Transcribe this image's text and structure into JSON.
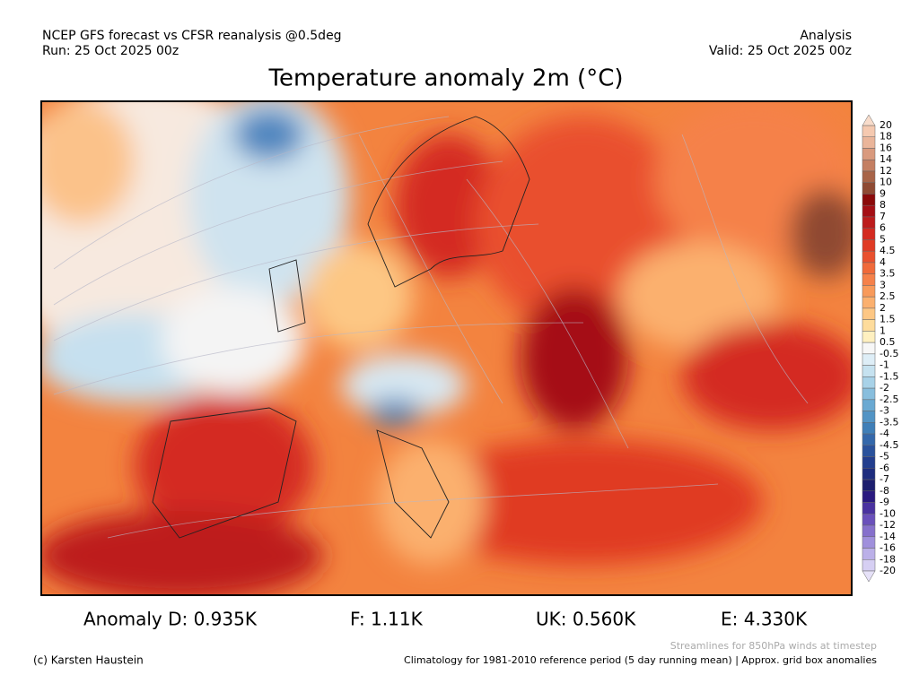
{
  "header": {
    "left_line1": "NCEP GFS forecast vs CFSR reanalysis @0.5deg",
    "left_line2": "Run: 25 Oct 2025 00z",
    "right_line1": "Analysis",
    "right_line2": "Valid: 25 Oct 2025 00z"
  },
  "title": "Temperature anomaly 2m (°C)",
  "colorbar": {
    "labels": [
      20,
      18,
      16,
      14,
      12,
      10,
      9,
      8,
      7,
      6,
      5,
      4.5,
      4,
      3.5,
      3,
      2.5,
      2,
      1.5,
      1,
      0.5,
      -0.5,
      -1,
      -1.5,
      -2,
      -2.5,
      -3,
      -3.5,
      -4,
      -4.5,
      -5,
      -6,
      -7,
      -8,
      -9,
      -10,
      -12,
      -14,
      -16,
      -18,
      -20
    ],
    "colors": [
      "#f5c9b0",
      "#eab59a",
      "#d99a7e",
      "#c47f62",
      "#a86448",
      "#8f4a33",
      "#8b0a0a",
      "#a50f15",
      "#bd1c1c",
      "#d42a20",
      "#e03b24",
      "#e9502e",
      "#f06a3a",
      "#f5814a",
      "#f89a5a",
      "#fbb06e",
      "#fdc784",
      "#fedc9c",
      "#fff0c0",
      "#f7f7f7",
      "#deeef7",
      "#c6e2f0",
      "#a8d2e8",
      "#88bedd",
      "#6aa9d2",
      "#5294c5",
      "#3f7fb8",
      "#3468ab",
      "#2a529c",
      "#233e8e",
      "#1e2d7e",
      "#1c1e6e",
      "#2a1a80",
      "#4a32a0",
      "#6a50bb",
      "#8670cc",
      "#a090dc",
      "#bbb0e8",
      "#d6cff3"
    ]
  },
  "stats": [
    "Anomaly D: 0.935K",
    "F: 1.11K",
    "UK: 0.560K",
    "E: 4.330K"
  ],
  "footer": {
    "credit": "(c) Karsten Haustein",
    "streamlines_note": "Streamlines for 850hPa winds at timestep",
    "climatology": "Climatology for 1981-2010 reference period (5 day running mean) | Approx. grid box anomalies"
  }
}
